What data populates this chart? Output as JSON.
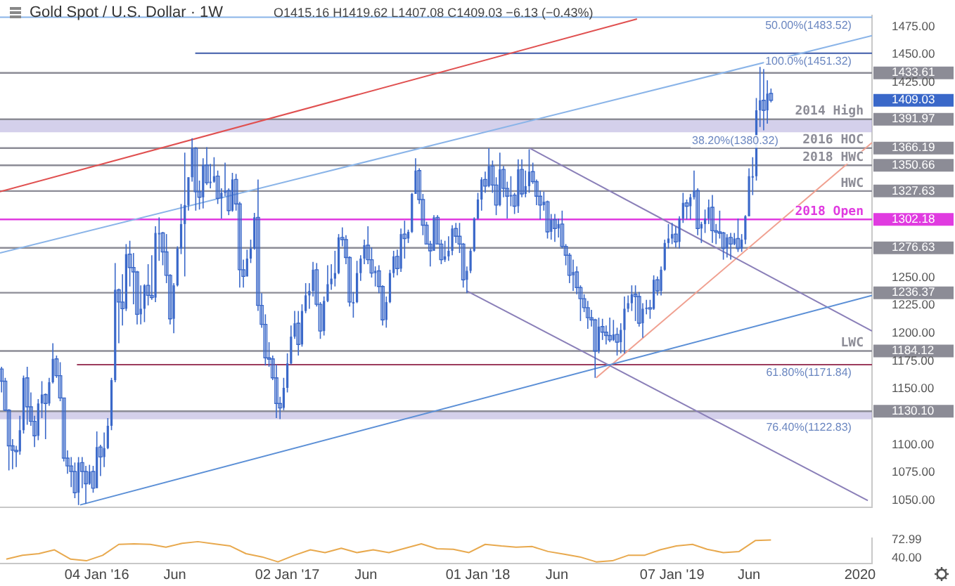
{
  "chart_data": [
    {
      "type": "candlestick",
      "title": "Gold Spot / U.S. Dollar · 1W",
      "subtitle": "O1415.16  H1419.62  L1407.08  C1409.03  −6.13 (−0.43%)",
      "color": "#3a68c9",
      "x": [
        "2015-07-06",
        "2015-07-13",
        "2015-07-20",
        "2015-07-27",
        "2015-08-03",
        "2015-08-10",
        "2015-08-17",
        "2015-08-24",
        "2015-08-31",
        "2015-09-07",
        "2015-09-14",
        "2015-09-21",
        "2015-09-28",
        "2015-10-05",
        "2015-10-12",
        "2015-10-19",
        "2015-10-26",
        "2015-11-02",
        "2015-11-09",
        "2015-11-16",
        "2015-11-23",
        "2015-11-30",
        "2015-12-07",
        "2015-12-14",
        "2015-12-21",
        "2015-12-28",
        "2016-01-04",
        "2016-01-11",
        "2016-01-18",
        "2016-01-25",
        "2016-02-01",
        "2016-02-08",
        "2016-02-15",
        "2016-02-22",
        "2016-02-29",
        "2016-03-07",
        "2016-03-14",
        "2016-03-21",
        "2016-03-28",
        "2016-04-04",
        "2016-04-11",
        "2016-04-18",
        "2016-04-25",
        "2016-05-02",
        "2016-05-09",
        "2016-05-16",
        "2016-05-23",
        "2016-05-30",
        "2016-06-06",
        "2016-06-13",
        "2016-06-20",
        "2016-06-27",
        "2016-07-04",
        "2016-07-11",
        "2016-07-18",
        "2016-07-25",
        "2016-08-01",
        "2016-08-08",
        "2016-08-15",
        "2016-08-22",
        "2016-08-29",
        "2016-09-05",
        "2016-09-12",
        "2016-09-19",
        "2016-09-26",
        "2016-10-03",
        "2016-10-10",
        "2016-10-17",
        "2016-10-24",
        "2016-10-31",
        "2016-11-07",
        "2016-11-14",
        "2016-11-21",
        "2016-11-28",
        "2016-12-05",
        "2016-12-12",
        "2016-12-19",
        "2016-12-26",
        "2017-01-02",
        "2017-01-09",
        "2017-01-16",
        "2017-01-23",
        "2017-01-30",
        "2017-02-06",
        "2017-02-13",
        "2017-02-20",
        "2017-02-27",
        "2017-03-06",
        "2017-03-13",
        "2017-03-20",
        "2017-03-27",
        "2017-04-03",
        "2017-04-10",
        "2017-04-17",
        "2017-04-24",
        "2017-05-01",
        "2017-05-08",
        "2017-05-15",
        "2017-05-22",
        "2017-05-29",
        "2017-06-05",
        "2017-06-12",
        "2017-06-19",
        "2017-06-26",
        "2017-07-03",
        "2017-07-10",
        "2017-07-17",
        "2017-07-24",
        "2017-07-31",
        "2017-08-07",
        "2017-08-14",
        "2017-08-21",
        "2017-08-28",
        "2017-09-04",
        "2017-09-11",
        "2017-09-18",
        "2017-09-25",
        "2017-10-02",
        "2017-10-09",
        "2017-10-16",
        "2017-10-23",
        "2017-10-30",
        "2017-11-06",
        "2017-11-13",
        "2017-11-20",
        "2017-11-27",
        "2017-12-04",
        "2017-12-11",
        "2017-12-18",
        "2017-12-25",
        "2018-01-01",
        "2018-01-08",
        "2018-01-15",
        "2018-01-22",
        "2018-01-29",
        "2018-02-05",
        "2018-02-12",
        "2018-02-19",
        "2018-02-26",
        "2018-03-05",
        "2018-03-12",
        "2018-03-19",
        "2018-03-26",
        "2018-04-02",
        "2018-04-09",
        "2018-04-16",
        "2018-04-23",
        "2018-04-30",
        "2018-05-07",
        "2018-05-14",
        "2018-05-21",
        "2018-05-28",
        "2018-06-04",
        "2018-06-11",
        "2018-06-18",
        "2018-06-25",
        "2018-07-02",
        "2018-07-09",
        "2018-07-16",
        "2018-07-23",
        "2018-07-30",
        "2018-08-06",
        "2018-08-13",
        "2018-08-20",
        "2018-08-27",
        "2018-09-03",
        "2018-09-10",
        "2018-09-17",
        "2018-09-24",
        "2018-10-01",
        "2018-10-08",
        "2018-10-15",
        "2018-10-22",
        "2018-10-29",
        "2018-11-05",
        "2018-11-12",
        "2018-11-19",
        "2018-11-26",
        "2018-12-03",
        "2018-12-10",
        "2018-12-17",
        "2018-12-24",
        "2018-12-31",
        "2019-01-07",
        "2019-01-14",
        "2019-01-21",
        "2019-01-28",
        "2019-02-04",
        "2019-02-11",
        "2019-02-18",
        "2019-02-25",
        "2019-03-04",
        "2019-03-11",
        "2019-03-18",
        "2019-03-25",
        "2019-04-01",
        "2019-04-08",
        "2019-04-15",
        "2019-04-22",
        "2019-04-29",
        "2019-05-06",
        "2019-05-13",
        "2019-05-20",
        "2019-05-27",
        "2019-06-03",
        "2019-06-10",
        "2019-06-17",
        "2019-06-24",
        "2019-07-01",
        "2019-07-08",
        "2019-07-15"
      ],
      "ohlc": [
        [
          1168,
          1170,
          1147,
          1157
        ],
        [
          1157,
          1160,
          1130,
          1131
        ],
        [
          1131,
          1132,
          1077,
          1099
        ],
        [
          1099,
          1105,
          1078,
          1095
        ],
        [
          1095,
          1099,
          1080,
          1094
        ],
        [
          1094,
          1126,
          1091,
          1113
        ],
        [
          1113,
          1162,
          1110,
          1160
        ],
        [
          1160,
          1170,
          1118,
          1134
        ],
        [
          1134,
          1147,
          1117,
          1121
        ],
        [
          1121,
          1126,
          1098,
          1108
        ],
        [
          1108,
          1141,
          1104,
          1137
        ],
        [
          1137,
          1157,
          1124,
          1145
        ],
        [
          1145,
          1146,
          1105,
          1137
        ],
        [
          1137,
          1160,
          1135,
          1156
        ],
        [
          1156,
          1191,
          1155,
          1177
        ],
        [
          1177,
          1180,
          1160,
          1162
        ],
        [
          1162,
          1174,
          1139,
          1142
        ],
        [
          1142,
          1142,
          1085,
          1088
        ],
        [
          1088,
          1095,
          1074,
          1081
        ],
        [
          1081,
          1089,
          1062,
          1076
        ],
        [
          1076,
          1084,
          1052,
          1057
        ],
        [
          1057,
          1089,
          1046,
          1084
        ],
        [
          1084,
          1089,
          1061,
          1076
        ],
        [
          1076,
          1081,
          1047,
          1065
        ],
        [
          1065,
          1082,
          1064,
          1076
        ],
        [
          1076,
          1081,
          1057,
          1061
        ],
        [
          1061,
          1112,
          1061,
          1098
        ],
        [
          1098,
          1100,
          1072,
          1089
        ],
        [
          1089,
          1111,
          1080,
          1097
        ],
        [
          1097,
          1124,
          1096,
          1117
        ],
        [
          1117,
          1160,
          1113,
          1158
        ],
        [
          1158,
          1263,
          1156,
          1239
        ],
        [
          1239,
          1240,
          1191,
          1228
        ],
        [
          1228,
          1253,
          1207,
          1222
        ],
        [
          1222,
          1280,
          1220,
          1271
        ],
        [
          1271,
          1283,
          1242,
          1259
        ],
        [
          1259,
          1272,
          1226,
          1255
        ],
        [
          1255,
          1256,
          1208,
          1217
        ],
        [
          1217,
          1243,
          1208,
          1222
        ],
        [
          1222,
          1244,
          1210,
          1243
        ],
        [
          1243,
          1262,
          1225,
          1234
        ],
        [
          1234,
          1270,
          1230,
          1232
        ],
        [
          1232,
          1296,
          1228,
          1290
        ],
        [
          1290,
          1304,
          1265,
          1290
        ],
        [
          1290,
          1291,
          1261,
          1273
        ],
        [
          1273,
          1289,
          1245,
          1252
        ],
        [
          1252,
          1253,
          1208,
          1213
        ],
        [
          1213,
          1245,
          1200,
          1243
        ],
        [
          1243,
          1278,
          1242,
          1276
        ],
        [
          1276,
          1316,
          1271,
          1298
        ],
        [
          1298,
          1362,
          1251,
          1315
        ],
        [
          1315,
          1340,
          1310,
          1340
        ],
        [
          1340,
          1375,
          1336,
          1366
        ],
        [
          1366,
          1367,
          1310,
          1327
        ],
        [
          1327,
          1337,
          1311,
          1322
        ],
        [
          1322,
          1357,
          1312,
          1351
        ],
        [
          1351,
          1367,
          1333,
          1335
        ],
        [
          1335,
          1352,
          1330,
          1336
        ],
        [
          1336,
          1358,
          1335,
          1341
        ],
        [
          1341,
          1346,
          1316,
          1321
        ],
        [
          1321,
          1330,
          1303,
          1326
        ],
        [
          1326,
          1353,
          1323,
          1328
        ],
        [
          1328,
          1330,
          1306,
          1310
        ],
        [
          1310,
          1344,
          1309,
          1338
        ],
        [
          1338,
          1343,
          1310,
          1316
        ],
        [
          1316,
          1318,
          1241,
          1257
        ],
        [
          1257,
          1266,
          1241,
          1251
        ],
        [
          1251,
          1275,
          1251,
          1267
        ],
        [
          1267,
          1284,
          1263,
          1276
        ],
        [
          1276,
          1308,
          1275,
          1304
        ],
        [
          1304,
          1338,
          1220,
          1225
        ],
        [
          1225,
          1236,
          1205,
          1208
        ],
        [
          1208,
          1217,
          1171,
          1178
        ],
        [
          1178,
          1192,
          1170,
          1177
        ],
        [
          1177,
          1180,
          1158,
          1160
        ],
        [
          1160,
          1172,
          1124,
          1137
        ],
        [
          1137,
          1143,
          1123,
          1133
        ],
        [
          1133,
          1160,
          1131,
          1151
        ],
        [
          1151,
          1182,
          1147,
          1173
        ],
        [
          1173,
          1207,
          1172,
          1197
        ],
        [
          1197,
          1220,
          1195,
          1209
        ],
        [
          1209,
          1220,
          1180,
          1190
        ],
        [
          1190,
          1226,
          1188,
          1220
        ],
        [
          1220,
          1245,
          1218,
          1234
        ],
        [
          1234,
          1245,
          1222,
          1238
        ],
        [
          1238,
          1264,
          1233,
          1257
        ],
        [
          1257,
          1263,
          1224,
          1226
        ],
        [
          1226,
          1228,
          1195,
          1202
        ],
        [
          1202,
          1233,
          1198,
          1229
        ],
        [
          1229,
          1261,
          1228,
          1244
        ],
        [
          1244,
          1262,
          1239,
          1249
        ],
        [
          1249,
          1274,
          1242,
          1254
        ],
        [
          1254,
          1289,
          1253,
          1286
        ],
        [
          1286,
          1295,
          1278,
          1284
        ],
        [
          1284,
          1288,
          1262,
          1268
        ],
        [
          1268,
          1269,
          1224,
          1228
        ],
        [
          1228,
          1237,
          1214,
          1228
        ],
        [
          1228,
          1265,
          1227,
          1254
        ],
        [
          1254,
          1270,
          1247,
          1267
        ],
        [
          1267,
          1284,
          1262,
          1279
        ],
        [
          1279,
          1296,
          1262,
          1266
        ],
        [
          1266,
          1277,
          1250,
          1254
        ],
        [
          1254,
          1260,
          1242,
          1256
        ],
        [
          1256,
          1261,
          1236,
          1242
        ],
        [
          1242,
          1243,
          1207,
          1212
        ],
        [
          1212,
          1233,
          1205,
          1228
        ],
        [
          1228,
          1257,
          1227,
          1254
        ],
        [
          1254,
          1274,
          1250,
          1269
        ],
        [
          1269,
          1275,
          1252,
          1258
        ],
        [
          1258,
          1294,
          1255,
          1289
        ],
        [
          1289,
          1301,
          1267,
          1285
        ],
        [
          1285,
          1293,
          1281,
          1291
        ],
        [
          1291,
          1326,
          1290,
          1325
        ],
        [
          1325,
          1357,
          1325,
          1346
        ],
        [
          1346,
          1348,
          1316,
          1320
        ],
        [
          1320,
          1325,
          1288,
          1297
        ],
        [
          1297,
          1300,
          1280,
          1280
        ],
        [
          1280,
          1283,
          1260,
          1274
        ],
        [
          1274,
          1306,
          1274,
          1304
        ],
        [
          1304,
          1306,
          1280,
          1280
        ],
        [
          1280,
          1284,
          1262,
          1266
        ],
        [
          1266,
          1283,
          1264,
          1269
        ],
        [
          1269,
          1287,
          1265,
          1274
        ],
        [
          1274,
          1297,
          1270,
          1294
        ],
        [
          1294,
          1299,
          1281,
          1287
        ],
        [
          1287,
          1299,
          1272,
          1280
        ],
        [
          1280,
          1281,
          1241,
          1248
        ],
        [
          1248,
          1260,
          1236,
          1256
        ],
        [
          1256,
          1276,
          1254,
          1274
        ],
        [
          1274,
          1304,
          1273,
          1303
        ],
        [
          1303,
          1326,
          1302,
          1320
        ],
        [
          1320,
          1340,
          1310,
          1338
        ],
        [
          1338,
          1345,
          1326,
          1332
        ],
        [
          1332,
          1366,
          1331,
          1350
        ],
        [
          1350,
          1355,
          1326,
          1333
        ],
        [
          1333,
          1340,
          1306,
          1315
        ],
        [
          1315,
          1362,
          1314,
          1347
        ],
        [
          1347,
          1350,
          1322,
          1330
        ],
        [
          1330,
          1336,
          1303,
          1323
        ],
        [
          1323,
          1341,
          1314,
          1324
        ],
        [
          1324,
          1326,
          1307,
          1314
        ],
        [
          1314,
          1356,
          1308,
          1347
        ],
        [
          1347,
          1356,
          1322,
          1325
        ],
        [
          1325,
          1346,
          1322,
          1332
        ],
        [
          1332,
          1365,
          1326,
          1345
        ],
        [
          1345,
          1353,
          1334,
          1336
        ],
        [
          1336,
          1338,
          1315,
          1323
        ],
        [
          1323,
          1328,
          1302,
          1315
        ],
        [
          1315,
          1327,
          1310,
          1318
        ],
        [
          1318,
          1319,
          1285,
          1291
        ],
        [
          1291,
          1307,
          1284,
          1302
        ],
        [
          1302,
          1307,
          1282,
          1294
        ],
        [
          1294,
          1303,
          1286,
          1298
        ],
        [
          1298,
          1310,
          1276,
          1278
        ],
        [
          1278,
          1280,
          1261,
          1270
        ],
        [
          1270,
          1272,
          1245,
          1252
        ],
        [
          1252,
          1266,
          1238,
          1255
        ],
        [
          1255,
          1260,
          1235,
          1241
        ],
        [
          1241,
          1243,
          1211,
          1231
        ],
        [
          1231,
          1235,
          1219,
          1223
        ],
        [
          1223,
          1229,
          1204,
          1214
        ],
        [
          1214,
          1221,
          1206,
          1212
        ],
        [
          1212,
          1213,
          1160,
          1184
        ],
        [
          1184,
          1214,
          1182,
          1206
        ],
        [
          1206,
          1213,
          1194,
          1201
        ],
        [
          1201,
          1207,
          1190,
          1198
        ],
        [
          1198,
          1214,
          1192,
          1194
        ],
        [
          1194,
          1212,
          1193,
          1199
        ],
        [
          1199,
          1205,
          1180,
          1192
        ],
        [
          1192,
          1209,
          1182,
          1203
        ],
        [
          1203,
          1233,
          1182,
          1222
        ],
        [
          1222,
          1234,
          1219,
          1227
        ],
        [
          1227,
          1243,
          1220,
          1235
        ],
        [
          1235,
          1243,
          1211,
          1233
        ],
        [
          1233,
          1237,
          1206,
          1209
        ],
        [
          1209,
          1227,
          1196,
          1222
        ],
        [
          1222,
          1230,
          1217,
          1223
        ],
        [
          1223,
          1230,
          1213,
          1222
        ],
        [
          1222,
          1252,
          1221,
          1248
        ],
        [
          1248,
          1251,
          1234,
          1238
        ],
        [
          1238,
          1260,
          1234,
          1257
        ],
        [
          1257,
          1284,
          1256,
          1281
        ],
        [
          1281,
          1298,
          1276,
          1285
        ],
        [
          1285,
          1299,
          1280,
          1289
        ],
        [
          1289,
          1296,
          1277,
          1282
        ],
        [
          1282,
          1305,
          1276,
          1303
        ],
        [
          1303,
          1326,
          1299,
          1317
        ],
        [
          1317,
          1320,
          1302,
          1314
        ],
        [
          1314,
          1325,
          1302,
          1322
        ],
        [
          1322,
          1346,
          1320,
          1328
        ],
        [
          1328,
          1330,
          1288,
          1294
        ],
        [
          1294,
          1300,
          1281,
          1298
        ],
        [
          1298,
          1311,
          1290,
          1303
        ],
        [
          1303,
          1320,
          1298,
          1313
        ],
        [
          1313,
          1324,
          1281,
          1292
        ],
        [
          1292,
          1298,
          1280,
          1291
        ],
        [
          1291,
          1310,
          1285,
          1290
        ],
        [
          1290,
          1291,
          1266,
          1276
        ],
        [
          1276,
          1289,
          1268,
          1286
        ],
        [
          1286,
          1290,
          1266,
          1280
        ],
        [
          1280,
          1290,
          1279,
          1285
        ],
        [
          1285,
          1303,
          1273,
          1276
        ],
        [
          1276,
          1289,
          1273,
          1284
        ],
        [
          1284,
          1306,
          1280,
          1305
        ],
        [
          1305,
          1348,
          1305,
          1341
        ],
        [
          1341,
          1358,
          1324,
          1341
        ],
        [
          1341,
          1411,
          1337,
          1400
        ],
        [
          1400,
          1439,
          1385,
          1409
        ],
        [
          1409,
          1437,
          1382,
          1400
        ],
        [
          1400,
          1427,
          1388,
          1415
        ],
        [
          1415.16,
          1419.62,
          1407.08,
          1409.03
        ]
      ],
      "series": [
        {
          "type": "line",
          "color": "#e05050",
          "x": [
            "2015-07-03",
            "2018-11-01"
          ],
          "values": [
            1327,
            1482
          ]
        },
        {
          "type": "line",
          "color": "#8ab4e8",
          "x": [
            "2015-07-03",
            "2020-01-24"
          ],
          "values": [
            1272,
            1467
          ]
        },
        {
          "type": "line",
          "color": "#5b8fd6",
          "x": [
            "2015-12-03",
            "2020-01-24"
          ],
          "values": [
            1046,
            1234
          ]
        },
        {
          "type": "line",
          "color": "#8a7fb8",
          "x": [
            "2018-04-10",
            "2020-01-24"
          ],
          "values": [
            1366,
            1202
          ]
        },
        {
          "type": "line",
          "color": "#8a7fb8",
          "x": [
            "2017-12-11",
            "2020-01-16"
          ],
          "values": [
            1238,
            1050
          ]
        },
        {
          "type": "line",
          "color": "#f0a090",
          "x": [
            "2018-08-15",
            "2020-01-24"
          ],
          "values": [
            1160,
            1371
          ]
        },
        {
          "type": "line",
          "color": "#8ab4e8",
          "x": [
            "2015-07-03",
            "2020-01-24"
          ],
          "values": [
            1483.52,
            1483.52
          ]
        },
        {
          "type": "line",
          "color": "#3d5aa8",
          "x": [
            "2016-07-10",
            "2020-01-24"
          ],
          "values": [
            1451.32,
            1451.32
          ]
        },
        {
          "type": "line",
          "color": "#9c3b5c",
          "x": [
            "2015-11-27",
            "2020-01-24"
          ],
          "values": [
            1171.84,
            1171.84
          ]
        }
      ],
      "bands": [
        {
          "axis": "y",
          "from": 1380.32,
          "to": 1391.97,
          "color": "#b7b0de"
        },
        {
          "axis": "y",
          "from": 1122.83,
          "to": 1130.1,
          "color": "#b7b0de"
        }
      ],
      "ref_lines": [
        {
          "axis": "y",
          "value": 1433.61,
          "color": "#8c8c96"
        },
        {
          "axis": "y",
          "value": 1391.97,
          "label": "2014 High",
          "color": "#8c8c96"
        },
        {
          "axis": "y",
          "value": 1366.19,
          "label": "2016 HOC",
          "color": "#8c8c96"
        },
        {
          "axis": "y",
          "value": 1350.66,
          "label": "2018 HWC",
          "color": "#8c8c96"
        },
        {
          "axis": "y",
          "value": 1327.63,
          "label": "HWC",
          "color": "#8c8c96"
        },
        {
          "axis": "y",
          "value": 1302.18,
          "label": "2018 Open",
          "color": "#e03be0"
        },
        {
          "axis": "y",
          "value": 1276.63,
          "color": "#8c8c96"
        },
        {
          "axis": "y",
          "value": 1236.37,
          "color": "#8c8c96"
        },
        {
          "axis": "y",
          "value": 1184.12,
          "label": "LWC",
          "color": "#8c8c96"
        },
        {
          "axis": "y",
          "value": 1130.1,
          "color": "#8c8c96"
        }
      ],
      "annotations": [
        {
          "text": "50.00%(1483.52)",
          "x": "2019-12-16",
          "y": 1483.52
        },
        {
          "text": "100.0%(1451.32)",
          "x": "2019-12-16",
          "y": 1451.32
        },
        {
          "text": "38.20%(1380.32)",
          "x": "2019-07-29",
          "y": 1380.32
        },
        {
          "text": "61.80%(1171.84)",
          "x": "2019-12-16",
          "y": 1171.84
        },
        {
          "text": "76.40%(1122.83)",
          "x": "2019-12-16",
          "y": 1122.83
        }
      ],
      "xlim": [
        "2015-07-03",
        "2020-01-24"
      ],
      "ylim": [
        1044,
        1485
      ],
      "yticks": [
        {
          "value": 1475,
          "label": "1475.00"
        },
        {
          "value": 1450,
          "label": "1450.00"
        },
        {
          "value": 1433.61,
          "label": "1433.61"
        },
        {
          "value": 1425,
          "label": "1425.00"
        },
        {
          "value": 1409.03,
          "label": "1409.03"
        },
        {
          "value": 1391.97,
          "label": "1391.97"
        },
        {
          "value": 1366.19,
          "label": "1366.19"
        },
        {
          "value": 1350.66,
          "label": "1350.66"
        },
        {
          "value": 1327.63,
          "label": "1327.63"
        },
        {
          "value": 1302.18,
          "label": "1302.18"
        },
        {
          "value": 1276.63,
          "label": "1276.63"
        },
        {
          "value": 1250,
          "label": "1250.00"
        },
        {
          "value": 1236.37,
          "label": "1236.37"
        },
        {
          "value": 1225,
          "label": "1225.00"
        },
        {
          "value": 1200,
          "label": "1200.00"
        },
        {
          "value": 1184.12,
          "label": "1184.12"
        },
        {
          "value": 1175,
          "label": "1175.00"
        },
        {
          "value": 1150,
          "label": "1150.00"
        },
        {
          "value": 1130.1,
          "label": "1130.10"
        },
        {
          "value": 1100,
          "label": "1100.00"
        },
        {
          "value": 1075,
          "label": "1075.00"
        },
        {
          "value": 1050,
          "label": "1050.00"
        }
      ],
      "tick_labels": "y"
    },
    {
      "type": "line",
      "color": "#e8a94e",
      "x": [
        "2015-07-15",
        "2015-08-15",
        "2015-09-15",
        "2015-10-15",
        "2015-11-15",
        "2015-12-15",
        "2016-01-15",
        "2016-02-15",
        "2016-03-15",
        "2016-04-15",
        "2016-05-15",
        "2016-06-15",
        "2016-07-15",
        "2016-08-15",
        "2016-09-15",
        "2016-10-15",
        "2016-11-15",
        "2016-12-15",
        "2017-01-15",
        "2017-02-15",
        "2017-03-15",
        "2017-04-15",
        "2017-05-15",
        "2017-06-15",
        "2017-07-15",
        "2017-08-15",
        "2017-09-15",
        "2017-10-15",
        "2017-11-15",
        "2017-12-15",
        "2018-01-15",
        "2018-02-15",
        "2018-03-15",
        "2018-04-15",
        "2018-05-15",
        "2018-06-15",
        "2018-07-15",
        "2018-08-15",
        "2018-09-15",
        "2018-10-15",
        "2018-11-15",
        "2018-12-15",
        "2019-01-15",
        "2019-02-15",
        "2019-03-15",
        "2019-04-15",
        "2019-05-15",
        "2019-06-15",
        "2019-07-15"
      ],
      "values": [
        38,
        45,
        48,
        55,
        38,
        35,
        45,
        65,
        66,
        65,
        60,
        67,
        70,
        66,
        62,
        48,
        42,
        33,
        45,
        55,
        50,
        58,
        50,
        55,
        50,
        58,
        66,
        57,
        56,
        50,
        65,
        62,
        60,
        61,
        52,
        47,
        42,
        33,
        35,
        45,
        45,
        55,
        62,
        65,
        56,
        50,
        52,
        72,
        72.99
      ],
      "xlim": [
        "2015-07-03",
        "2020-01-24"
      ],
      "ylim": [
        30,
        76
      ],
      "xticks": [
        {
          "value": "2016-01-04",
          "label": "04 Jan '16"
        },
        {
          "value": "2016-06-01",
          "label": "Jun"
        },
        {
          "value": "2017-01-02",
          "label": "02 Jan '17"
        },
        {
          "value": "2017-06-01",
          "label": "Jun"
        },
        {
          "value": "2018-01-01",
          "label": "01 Jan '18"
        },
        {
          "value": "2018-06-01",
          "label": "Jun"
        },
        {
          "value": "2019-01-07",
          "label": "07 Jan '19"
        },
        {
          "value": "2019-06-03",
          "label": "Jun"
        },
        {
          "value": "2020-01-01",
          "label": "2020"
        }
      ],
      "yticks": [
        {
          "value": 72.99,
          "label": "72.99"
        },
        {
          "value": 40,
          "label": "40.00"
        }
      ]
    }
  ]
}
